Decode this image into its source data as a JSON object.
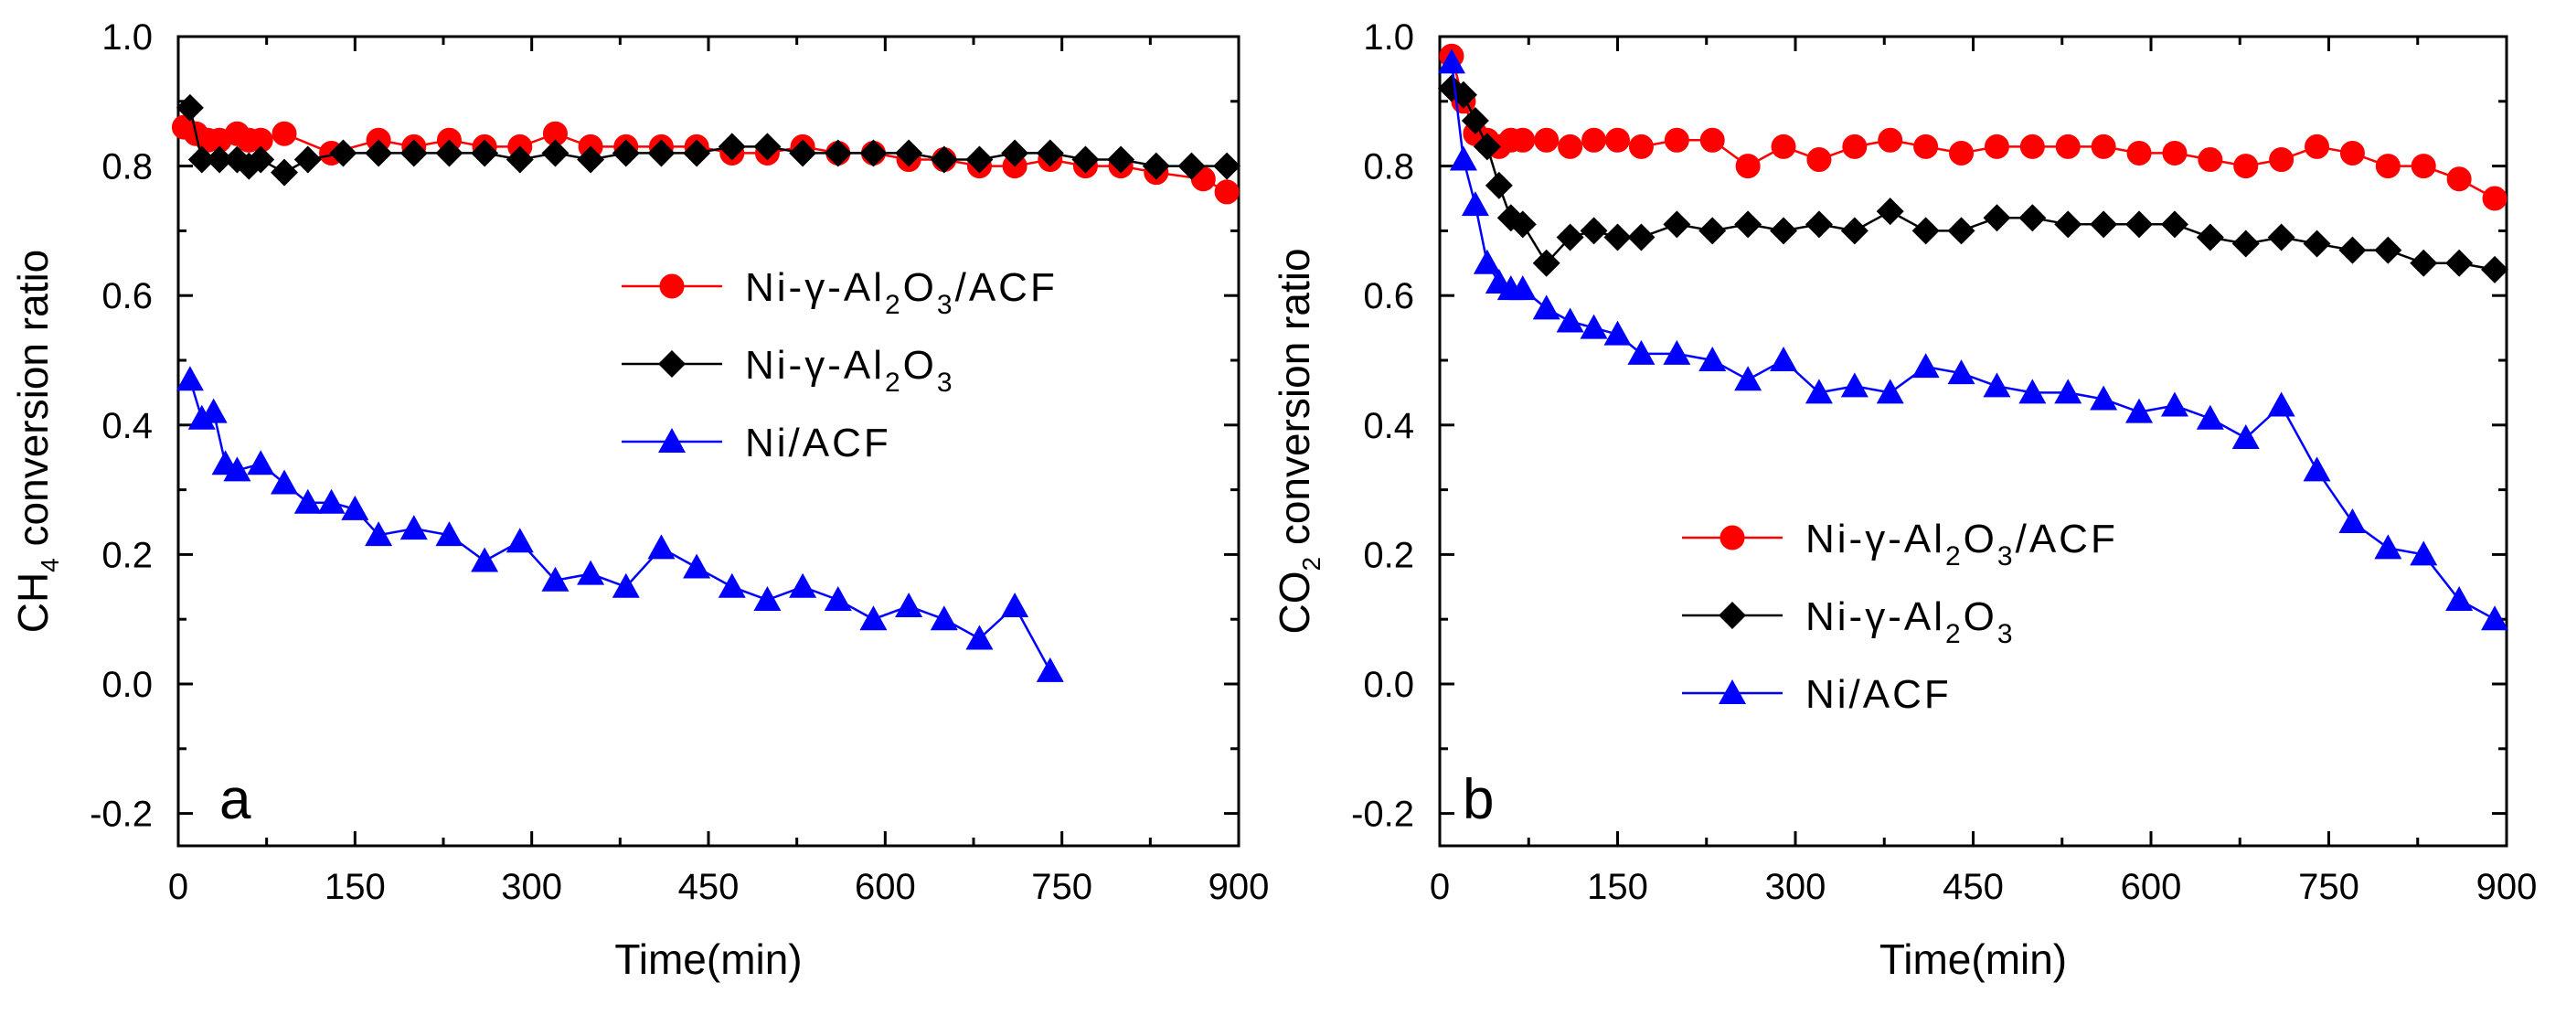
{
  "chart_data": [
    {
      "type": "line",
      "panel_label": "a",
      "xlabel": "Time(min)",
      "ylabel_prefix": "CH",
      "ylabel_sub": "4",
      "ylabel_suffix": " conversion ratio",
      "xlim": [
        0,
        900
      ],
      "ylim": [
        -0.25,
        1.0
      ],
      "xticks": [
        0,
        150,
        300,
        450,
        600,
        750,
        900
      ],
      "yticks": [
        -0.2,
        0.0,
        0.2,
        0.4,
        0.6,
        0.8,
        1.0
      ],
      "xtick_labels": [
        "0",
        "150",
        "300",
        "450",
        "600",
        "750",
        "900"
      ],
      "ytick_labels": [
        "-0.2",
        "0.0",
        "0.2",
        "0.4",
        "0.6",
        "0.8",
        "1.0"
      ],
      "legend_position": "center-right",
      "series": [
        {
          "name": "Ni-γ-Al2O3/ACF",
          "label_parts": [
            [
              "Ni-γ-Al",
              ""
            ],
            [
              "2",
              "sub"
            ],
            [
              "O",
              ""
            ],
            [
              "3",
              "sub"
            ],
            [
              "/ACF",
              ""
            ]
          ],
          "color": "#ff0000",
          "marker": "circle",
          "x": [
            5,
            15,
            25,
            35,
            50,
            60,
            70,
            90,
            130,
            170,
            200,
            230,
            260,
            290,
            320,
            350,
            380,
            410,
            440,
            470,
            500,
            530,
            560,
            590,
            620,
            650,
            680,
            710,
            740,
            770,
            800,
            830,
            870,
            890
          ],
          "y": [
            0.86,
            0.85,
            0.84,
            0.84,
            0.85,
            0.84,
            0.84,
            0.85,
            0.82,
            0.84,
            0.83,
            0.84,
            0.83,
            0.83,
            0.85,
            0.83,
            0.83,
            0.83,
            0.83,
            0.82,
            0.82,
            0.83,
            0.82,
            0.82,
            0.81,
            0.81,
            0.8,
            0.8,
            0.81,
            0.8,
            0.8,
            0.79,
            0.78,
            0.76
          ]
        },
        {
          "name": "Ni-γ-Al2O3",
          "label_parts": [
            [
              "Ni-γ-Al",
              ""
            ],
            [
              "2",
              "sub"
            ],
            [
              "O",
              ""
            ],
            [
              "3",
              "sub"
            ]
          ],
          "color": "#000000",
          "marker": "diamond",
          "x": [
            10,
            20,
            35,
            50,
            60,
            70,
            90,
            110,
            140,
            170,
            200,
            230,
            260,
            290,
            320,
            350,
            380,
            410,
            440,
            470,
            500,
            530,
            560,
            590,
            620,
            650,
            680,
            710,
            740,
            770,
            800,
            830,
            860,
            890
          ],
          "y": [
            0.89,
            0.81,
            0.81,
            0.81,
            0.8,
            0.81,
            0.79,
            0.81,
            0.82,
            0.82,
            0.82,
            0.82,
            0.82,
            0.81,
            0.82,
            0.81,
            0.82,
            0.82,
            0.82,
            0.83,
            0.83,
            0.82,
            0.82,
            0.82,
            0.82,
            0.81,
            0.81,
            0.82,
            0.82,
            0.81,
            0.81,
            0.8,
            0.8,
            0.8
          ]
        },
        {
          "name": "Ni/ACF",
          "label_parts": [
            [
              "Ni/ACF",
              ""
            ]
          ],
          "color": "#0000ff",
          "marker": "triangle",
          "x": [
            10,
            20,
            30,
            40,
            50,
            70,
            90,
            110,
            130,
            150,
            170,
            200,
            230,
            260,
            290,
            320,
            350,
            380,
            410,
            440,
            470,
            500,
            530,
            560,
            590,
            620,
            650,
            680,
            710,
            740
          ],
          "y": [
            0.47,
            0.41,
            0.42,
            0.34,
            0.33,
            0.34,
            0.31,
            0.28,
            0.28,
            0.27,
            0.23,
            0.24,
            0.23,
            0.19,
            0.22,
            0.16,
            0.17,
            0.15,
            0.21,
            0.18,
            0.15,
            0.13,
            0.15,
            0.13,
            0.1,
            0.12,
            0.1,
            0.07,
            0.12,
            0.02
          ]
        }
      ]
    },
    {
      "type": "line",
      "panel_label": "b",
      "xlabel": "Time(min)",
      "ylabel_prefix": "CO",
      "ylabel_sub": "2",
      "ylabel_suffix": " conversion ratio",
      "xlim": [
        0,
        900
      ],
      "ylim": [
        -0.25,
        1.0
      ],
      "xticks": [
        0,
        150,
        300,
        450,
        600,
        750,
        900
      ],
      "yticks": [
        -0.2,
        0.0,
        0.2,
        0.4,
        0.6,
        0.8,
        1.0
      ],
      "xtick_labels": [
        "0",
        "150",
        "300",
        "450",
        "600",
        "750",
        "900"
      ],
      "ytick_labels": [
        "-0.2",
        "0.0",
        "0.2",
        "0.4",
        "0.6",
        "0.8",
        "1.0"
      ],
      "legend_position": "center-right",
      "series": [
        {
          "name": "Ni-γ-Al2O3/ACF",
          "label_parts": [
            [
              "Ni-γ-Al",
              ""
            ],
            [
              "2",
              "sub"
            ],
            [
              "O",
              ""
            ],
            [
              "3",
              "sub"
            ],
            [
              "/ACF",
              ""
            ]
          ],
          "color": "#ff0000",
          "marker": "circle",
          "x": [
            10,
            20,
            30,
            40,
            50,
            60,
            70,
            90,
            110,
            130,
            150,
            170,
            200,
            230,
            260,
            290,
            320,
            350,
            380,
            410,
            440,
            470,
            500,
            530,
            560,
            590,
            620,
            650,
            680,
            710,
            740,
            770,
            800,
            830,
            860,
            890
          ],
          "y": [
            0.97,
            0.9,
            0.85,
            0.84,
            0.83,
            0.84,
            0.84,
            0.84,
            0.83,
            0.84,
            0.84,
            0.83,
            0.84,
            0.84,
            0.8,
            0.83,
            0.81,
            0.83,
            0.84,
            0.83,
            0.82,
            0.83,
            0.83,
            0.83,
            0.83,
            0.82,
            0.82,
            0.81,
            0.8,
            0.81,
            0.83,
            0.82,
            0.8,
            0.8,
            0.78,
            0.75
          ]
        },
        {
          "name": "Ni-γ-Al2O3",
          "label_parts": [
            [
              "Ni-γ-Al",
              ""
            ],
            [
              "2",
              "sub"
            ],
            [
              "O",
              ""
            ],
            [
              "3",
              "sub"
            ]
          ],
          "color": "#000000",
          "marker": "diamond",
          "x": [
            10,
            20,
            30,
            40,
            50,
            60,
            70,
            90,
            110,
            130,
            150,
            170,
            200,
            230,
            260,
            290,
            320,
            350,
            380,
            410,
            440,
            470,
            500,
            530,
            560,
            590,
            620,
            650,
            680,
            710,
            740,
            770,
            800,
            830,
            860,
            890
          ],
          "y": [
            0.92,
            0.91,
            0.87,
            0.83,
            0.77,
            0.72,
            0.71,
            0.65,
            0.69,
            0.7,
            0.69,
            0.69,
            0.71,
            0.7,
            0.71,
            0.7,
            0.71,
            0.7,
            0.73,
            0.7,
            0.7,
            0.72,
            0.72,
            0.71,
            0.71,
            0.71,
            0.71,
            0.69,
            0.68,
            0.69,
            0.68,
            0.67,
            0.67,
            0.65,
            0.65,
            0.64
          ]
        },
        {
          "name": "Ni/ACF",
          "label_parts": [
            [
              "Ni/ACF",
              ""
            ]
          ],
          "color": "#0000ff",
          "marker": "triangle",
          "x": [
            10,
            20,
            30,
            40,
            50,
            60,
            70,
            90,
            110,
            130,
            150,
            170,
            200,
            230,
            260,
            290,
            320,
            350,
            380,
            410,
            440,
            470,
            500,
            530,
            560,
            590,
            620,
            650,
            680,
            710,
            740,
            770,
            800,
            830,
            860,
            890
          ],
          "y": [
            0.96,
            0.81,
            0.74,
            0.65,
            0.62,
            0.61,
            0.61,
            0.58,
            0.56,
            0.55,
            0.54,
            0.51,
            0.51,
            0.5,
            0.47,
            0.5,
            0.45,
            0.46,
            0.45,
            0.49,
            0.48,
            0.46,
            0.45,
            0.45,
            0.44,
            0.42,
            0.43,
            0.41,
            0.38,
            0.43,
            0.33,
            0.25,
            0.21,
            0.2,
            0.13,
            0.1
          ]
        }
      ]
    }
  ]
}
